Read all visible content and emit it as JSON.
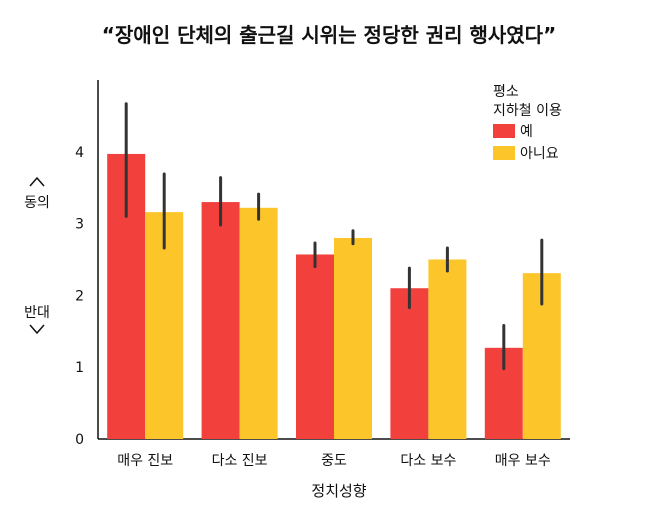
{
  "chart_data": {
    "type": "bar",
    "title": "“장애인 단체의 출근길 시위는 정당한 권리 행사였다”",
    "xlabel": "정치성향",
    "ylabel_top": "동의",
    "ylabel_bottom": "반대",
    "ylim": [
      0,
      5
    ],
    "yticks": [
      0,
      1,
      2,
      3,
      4
    ],
    "categories": [
      "매우 진보",
      "다소 진보",
      "중도",
      "다소 보수",
      "매우 보수"
    ],
    "legend": {
      "title_lines": [
        "평소",
        "지하철 이용"
      ],
      "placement": "top-right"
    },
    "series": [
      {
        "name": "예",
        "color": "#f2413d",
        "values": [
          3.97,
          3.3,
          2.57,
          2.1,
          1.27
        ],
        "err_low": [
          3.1,
          2.98,
          2.4,
          1.83,
          0.98
        ],
        "err_high": [
          4.67,
          3.64,
          2.73,
          2.38,
          1.58
        ]
      },
      {
        "name": "아니요",
        "color": "#fcc62a",
        "values": [
          3.16,
          3.22,
          2.8,
          2.5,
          2.31
        ],
        "err_low": [
          2.66,
          3.06,
          2.72,
          2.34,
          1.88
        ],
        "err_high": [
          3.69,
          3.41,
          2.9,
          2.66,
          2.77
        ]
      }
    ]
  }
}
